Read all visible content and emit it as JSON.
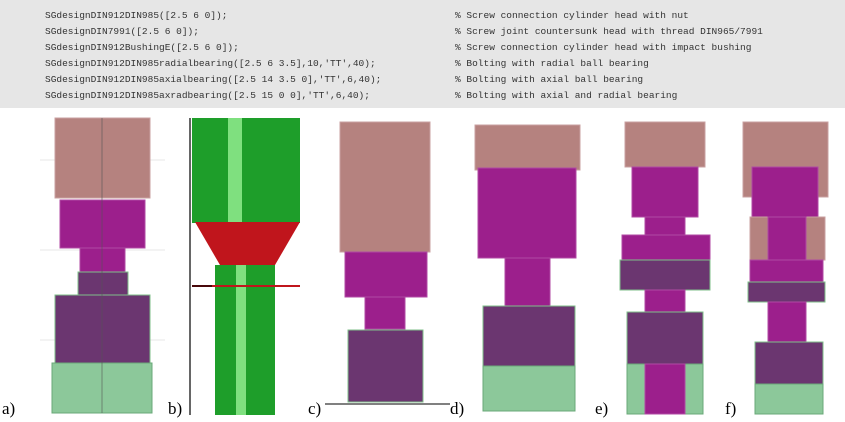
{
  "code": [
    {
      "command": "SGdesignDIN912DIN985([2.5 6 0]);",
      "comment": "% Screw connection cylinder head with nut"
    },
    {
      "command": "SGdesignDIN7991([2.5 6 0]);",
      "comment": "% Screw joint countersunk head with thread DIN965/7991"
    },
    {
      "command": "SGdesignDIN912BushingE([2.5 6 0]);",
      "comment": "% Screw connection cylinder head with impact bushing"
    },
    {
      "command": "SGdesignDIN912DIN985radialbearing([2.5 6 3.5],10,'TT',40);",
      "comment": "% Bolting with radial ball bearing"
    },
    {
      "command": "SGdesignDIN912DIN985axialbearing([2.5 14 3.5 0],'TT',6,40);",
      "comment": "% Bolting with axial ball bearing"
    },
    {
      "command": "SGdesignDIN912DIN985axradbearing([2.5 15 0 0],'TT',6,40);",
      "comment": "% Bolting with axial and radial bearing"
    }
  ],
  "panels": [
    {
      "label": "a)"
    },
    {
      "label": "b)"
    },
    {
      "label": "c)"
    },
    {
      "label": "d)"
    },
    {
      "label": "e)"
    },
    {
      "label": "f)"
    }
  ]
}
